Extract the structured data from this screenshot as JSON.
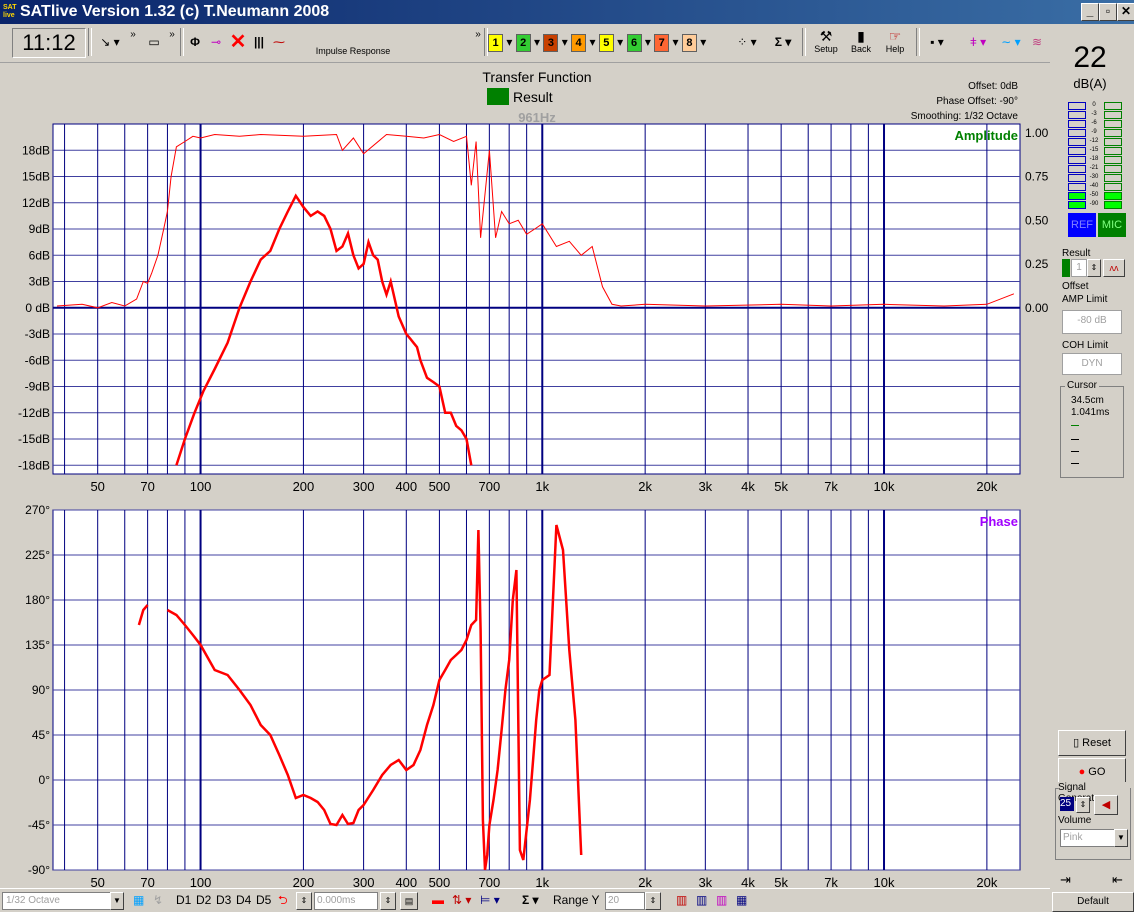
{
  "window": {
    "logo_text": "SAT live",
    "title": "SATlive Version 1.32 (c) T.Neumann 2008",
    "buttons": [
      "_",
      "▫",
      "✕"
    ]
  },
  "toolbar": {
    "time": "11:12",
    "impulse_label": "Impulse Response",
    "chips": [
      "1",
      "2",
      "3",
      "4",
      "5",
      "6",
      "7",
      "8"
    ],
    "chip_colors": [
      "#ffff00",
      "#33cc33",
      "#c84000",
      "#ff9900",
      "#ffff00",
      "#33cc33",
      "#ff6633",
      "#ffcc99"
    ],
    "setup_label": "Setup",
    "back_label": "Back",
    "help_label": "Help",
    "sigma": "Σ",
    "more": "»"
  },
  "header": {
    "title": "Transfer Function",
    "legend_label": "Result",
    "legend_color": "#008000",
    "cursor_freq": "961Hz",
    "offset": "Offset: 0dB",
    "phase_offset": "Phase Offset: -90°",
    "smoothing": "Smoothing: 1/32 Octave"
  },
  "level_meter": {
    "value": "22",
    "unit": "dB(A)",
    "scale": [
      "0",
      "-3",
      "-6",
      "-9",
      "-12",
      "-15",
      "-18",
      "-21",
      "-30",
      "-40",
      "-50",
      "-90"
    ],
    "ref_label": "REF",
    "mic_label": "MIC"
  },
  "right_panel": {
    "result_label": "Result",
    "result_value": "1",
    "offset_label": "Offset",
    "amp_limit_label": "AMP Limit",
    "amp_limit_value": "-80 dB",
    "coh_limit_label": "COH Limit",
    "coh_limit_value": "DYN",
    "cursor_label": "Cursor",
    "cursor_dist": "34.5cm",
    "cursor_time": "1.041ms",
    "reset_label": "Reset",
    "go_label": "GO",
    "signal_gen_label": "Signal Generator",
    "signal_gen_value": "25",
    "volume_label": "Volume",
    "volume_value": "Pink",
    "default_label": "Default"
  },
  "statusbar": {
    "smoothing_value": "1/32 Octave",
    "d_labels": [
      "D1",
      "D2",
      "D3",
      "D4",
      "D5"
    ],
    "delay_value": "0.000ms",
    "range_label": "Range Y",
    "range_value": "20"
  },
  "chart_data": [
    {
      "type": "line",
      "title": "Amplitude",
      "x_scale": "log",
      "xlim": [
        37,
        25000
      ],
      "ylim": [
        -19,
        21
      ],
      "x_ticks": [
        50,
        70,
        100,
        200,
        300,
        400,
        500,
        700,
        1000,
        2000,
        3000,
        4000,
        5000,
        7000,
        10000,
        20000
      ],
      "x_tick_labels": [
        "50",
        "70",
        "100",
        "200",
        "300",
        "400",
        "500",
        "700",
        "1k",
        "2k",
        "3k",
        "4k",
        "5k",
        "7k",
        "10k",
        "20k"
      ],
      "y_ticks": [
        18,
        15,
        12,
        9,
        6,
        3,
        0,
        -3,
        -6,
        -9,
        -12,
        -15,
        -18
      ],
      "y_tick_labels": [
        "18dB",
        "15dB",
        "12dB",
        "9dB",
        "6dB",
        "3dB",
        "0 dB",
        "-3dB",
        "-6dB",
        "-9dB",
        "-12dB",
        "-15dB",
        "-18dB"
      ],
      "coherence_ticks": [
        1.0,
        0.75,
        0.5,
        0.25,
        0.0
      ],
      "coherence_tick_labels": [
        "1.00",
        "0.75",
        "0.50",
        "0.25",
        "0.00"
      ],
      "grid": true,
      "series": [
        {
          "color": "#ff0000",
          "x": [
            85,
            90,
            96,
            102,
            110,
            120,
            130,
            140,
            150,
            160,
            170,
            180,
            190,
            200,
            210,
            220,
            230,
            240,
            250,
            260,
            270,
            280,
            290,
            300,
            310,
            320,
            330,
            340,
            350,
            360,
            370,
            380,
            390,
            400,
            410,
            420,
            430,
            440,
            460,
            480,
            500,
            520,
            540,
            560,
            580,
            600,
            620
          ],
          "y": [
            -18,
            -15,
            -12,
            -9.5,
            -7,
            -4,
            0,
            3,
            5.5,
            6.5,
            9,
            11,
            12.8,
            11.5,
            10.5,
            11,
            10.5,
            9,
            6.5,
            7,
            8.5,
            6,
            4.5,
            5,
            7.5,
            6,
            5.5,
            3,
            1.5,
            3,
            1,
            -1,
            -2,
            -3,
            -3.5,
            -4,
            -4.5,
            -6,
            -8,
            -8.5,
            -9,
            -12,
            -12,
            -13.5,
            -14,
            -15,
            -18
          ]
        },
        {
          "color": "#ff0000",
          "x": [
            38,
            45,
            50,
            55,
            60,
            65,
            68,
            70,
            72,
            75,
            78,
            80,
            82,
            85,
            90,
            95,
            100,
            110,
            130,
            150,
            200,
            250,
            260,
            280,
            300,
            350,
            400,
            450,
            500,
            550,
            600,
            620,
            640,
            660,
            700,
            730,
            760,
            800,
            850,
            900,
            950,
            1000,
            1100,
            1200,
            1300,
            1400,
            1500,
            1600,
            1700,
            2000,
            3000,
            5000,
            7000,
            10000,
            15000,
            20000,
            24000
          ],
          "y": [
            0.01,
            0.02,
            0.0,
            0.03,
            0.01,
            0.05,
            0.15,
            0.14,
            0.2,
            0.3,
            0.45,
            0.55,
            0.75,
            0.92,
            0.95,
            0.98,
            0.97,
            0.99,
            0.98,
            0.99,
            0.98,
            0.99,
            0.9,
            0.97,
            0.88,
            0.99,
            0.98,
            0.97,
            0.99,
            0.95,
            0.98,
            0.7,
            0.95,
            0.4,
            0.9,
            0.4,
            0.55,
            0.48,
            0.5,
            0.42,
            0.45,
            0.48,
            0.35,
            0.38,
            0.3,
            0.35,
            0.12,
            0.02,
            0.01,
            0.02,
            0.01,
            0.02,
            0.01,
            0.02,
            0.01,
            0.02,
            0.08
          ]
        }
      ]
    },
    {
      "type": "line",
      "title": "Phase",
      "x_scale": "log",
      "xlim": [
        37,
        25000
      ],
      "ylim": [
        -90,
        270
      ],
      "x_ticks": [
        50,
        70,
        100,
        200,
        300,
        400,
        500,
        700,
        1000,
        2000,
        3000,
        4000,
        5000,
        7000,
        10000,
        20000
      ],
      "x_tick_labels": [
        "50",
        "70",
        "100",
        "200",
        "300",
        "400",
        "500",
        "700",
        "1k",
        "2k",
        "3k",
        "4k",
        "5k",
        "7k",
        "10k",
        "20k"
      ],
      "y_ticks": [
        270,
        225,
        180,
        135,
        90,
        45,
        0,
        -45,
        -90
      ],
      "y_tick_labels": [
        "270°",
        "225°",
        "180°",
        "135°",
        "90°",
        "45°",
        "0°",
        "-45°",
        "-90°"
      ],
      "grid": true,
      "series": [
        {
          "color": "#ff0000",
          "x": [
            80,
            85,
            90,
            95,
            100,
            110,
            120,
            130,
            140,
            150,
            160,
            170,
            180,
            190,
            200,
            210,
            220,
            230,
            240,
            250,
            260,
            270,
            280,
            290,
            300,
            320,
            340,
            360,
            380,
            400,
            420,
            440,
            460,
            480,
            500,
            520,
            540,
            560,
            580,
            600,
            620,
            640,
            650,
            660,
            670,
            680,
            690,
            700,
            720,
            740,
            760,
            780,
            800,
            820,
            840,
            860,
            880,
            900,
            920,
            940,
            960,
            980,
            1000,
            1050,
            1100,
            1150,
            1200,
            1250,
            1300
          ],
          "y": [
            170,
            165,
            155,
            145,
            135,
            110,
            105,
            90,
            75,
            55,
            45,
            25,
            5,
            -18,
            -15,
            -18,
            -22,
            -30,
            -44,
            -45,
            -35,
            -44,
            -43,
            -30,
            -25,
            -10,
            5,
            15,
            20,
            10,
            15,
            30,
            55,
            75,
            100,
            110,
            120,
            125,
            130,
            140,
            155,
            160,
            250,
            150,
            -40,
            -90,
            -75,
            -45,
            -20,
            10,
            50,
            90,
            120,
            180,
            210,
            -70,
            -80,
            -50,
            -20,
            20,
            60,
            90,
            100,
            105,
            255,
            230,
            130,
            60,
            -75
          ]
        },
        {
          "color": "#ff0000",
          "x": [
            66,
            68,
            70
          ],
          "y": [
            155,
            170,
            175
          ]
        }
      ]
    }
  ]
}
